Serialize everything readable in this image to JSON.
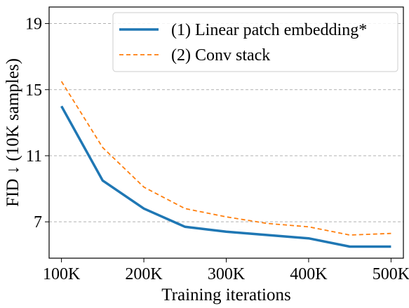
{
  "chart_data": {
    "type": "line",
    "x": [
      100000,
      150000,
      200000,
      250000,
      300000,
      350000,
      400000,
      450000,
      500000
    ],
    "xticks": [
      100000,
      200000,
      300000,
      400000,
      500000
    ],
    "xtick_labels": [
      "100K",
      "200K",
      "300K",
      "400K",
      "500K"
    ],
    "xlim": [
      85000,
      515000
    ],
    "yticks": [
      7,
      11,
      15,
      19
    ],
    "ytick_labels": [
      "7",
      "11",
      "15",
      "19"
    ],
    "ylim": [
      4.8,
      20.0
    ],
    "xlabel": "Training iterations",
    "ylabel": "FID ↓ (10K samples)",
    "grid": "y-dashed",
    "legend_position": "top-right",
    "series": [
      {
        "name": "(1) Linear patch embedding*",
        "color": "#1f77b4",
        "style": "solid",
        "values": [
          14.0,
          9.5,
          7.8,
          6.7,
          6.4,
          6.2,
          6.0,
          5.5,
          5.5
        ]
      },
      {
        "name": "(2) Conv stack",
        "color": "#ff7f0e",
        "style": "dashed",
        "values": [
          15.5,
          11.5,
          9.1,
          7.8,
          7.3,
          6.9,
          6.7,
          6.2,
          6.3
        ]
      }
    ]
  }
}
